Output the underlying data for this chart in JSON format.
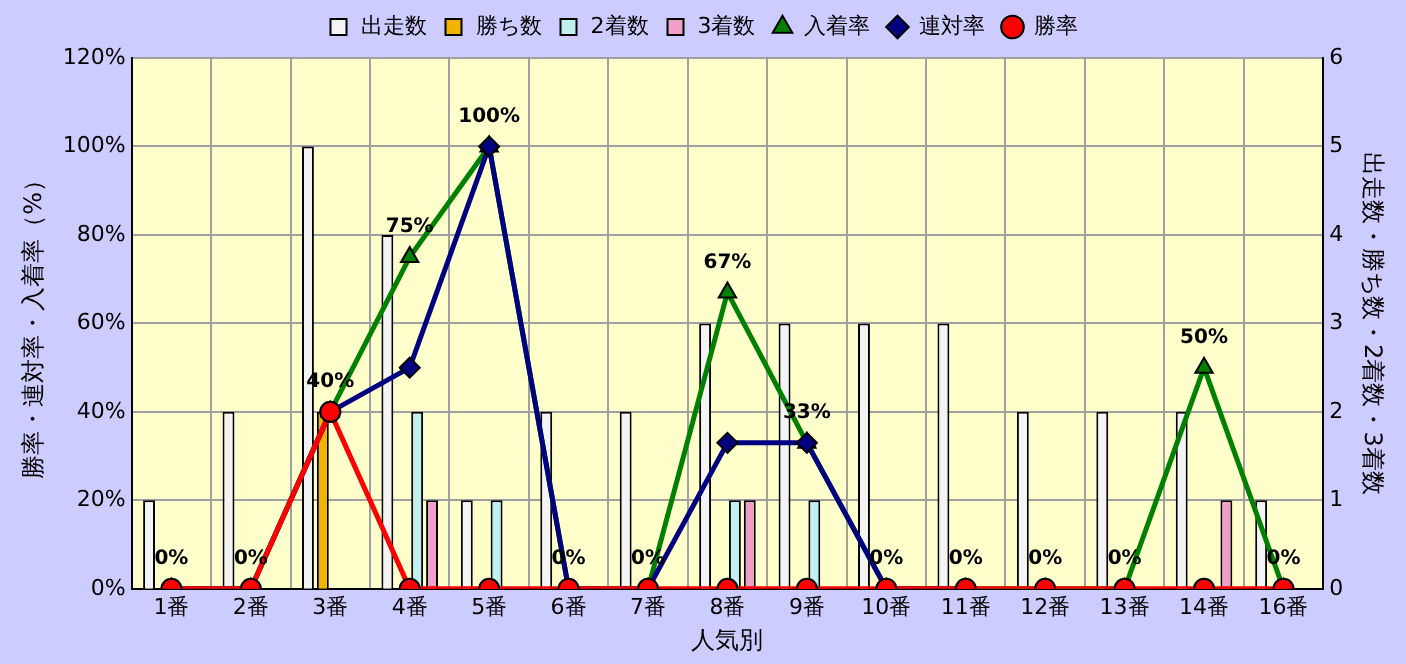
{
  "chart_data": {
    "type": "bar",
    "xlabel": "人気別",
    "ylabel": "勝率・連対率・入着率（%）",
    "y2label": "出走数・勝ち数・2着数・3着数",
    "categories": [
      "1番",
      "2番",
      "3番",
      "4番",
      "5番",
      "6番",
      "7番",
      "8番",
      "9番",
      "10番",
      "11番",
      "12番",
      "13番",
      "14番",
      "16番"
    ],
    "series": [
      {
        "name": "出走数",
        "axis": "y2",
        "color": "#f4f4f4",
        "values": [
          1,
          2,
          5,
          4,
          1,
          2,
          2,
          3,
          3,
          3,
          3,
          2,
          2,
          2,
          1
        ]
      },
      {
        "name": "勝ち数",
        "axis": "y2",
        "color": "#f0b400",
        "values": [
          0,
          0,
          2,
          0,
          0,
          0,
          0,
          0,
          0,
          0,
          0,
          0,
          0,
          0,
          0
        ]
      },
      {
        "name": "2着数",
        "axis": "y2",
        "color": "#c0f0f0",
        "values": [
          0,
          0,
          0,
          2,
          1,
          0,
          0,
          1,
          1,
          0,
          0,
          0,
          0,
          0,
          0
        ]
      },
      {
        "name": "3着数",
        "axis": "y2",
        "color": "#f0a0c8",
        "values": [
          0,
          0,
          0,
          1,
          0,
          0,
          0,
          1,
          0,
          0,
          0,
          0,
          0,
          1,
          0
        ]
      },
      {
        "name": "入着率",
        "type": "line",
        "axis": "y",
        "color": "#008000",
        "marker": "triangle",
        "values": [
          0,
          0,
          40,
          75,
          100,
          0,
          0,
          67,
          33,
          0,
          0,
          0,
          0,
          50,
          0
        ],
        "value_labels": [
          "0%",
          "0%",
          "40%",
          "75%",
          "100%",
          "0%",
          "0%",
          "67%",
          "33%",
          "0%",
          "0%",
          "0%",
          "0%",
          "50%",
          "0%"
        ]
      },
      {
        "name": "連対率",
        "type": "line",
        "axis": "y",
        "color": "#000080",
        "marker": "diamond",
        "values": [
          0,
          0,
          40,
          50,
          100,
          0,
          0,
          33,
          33,
          0,
          0,
          null,
          null,
          null,
          null
        ]
      },
      {
        "name": "勝率",
        "type": "line",
        "axis": "y",
        "color": "#ff0000",
        "marker": "circle",
        "values": [
          0,
          0,
          40,
          0,
          0,
          0,
          0,
          0,
          0,
          0,
          0,
          0,
          0,
          0,
          0
        ]
      }
    ],
    "ylim": [
      0,
      120
    ],
    "yticks": [
      {
        "value": 0,
        "label": "0%"
      },
      {
        "value": 20,
        "label": "20%"
      },
      {
        "value": 40,
        "label": "40%"
      },
      {
        "value": 60,
        "label": "60%"
      },
      {
        "value": 80,
        "label": "80%"
      },
      {
        "value": 100,
        "label": "100%"
      },
      {
        "value": 120,
        "label": "120%"
      }
    ],
    "y2lim": [
      0,
      6
    ],
    "y2ticks": [
      0,
      1,
      2,
      3,
      4,
      5,
      6
    ],
    "grid": true,
    "legend": "top"
  }
}
